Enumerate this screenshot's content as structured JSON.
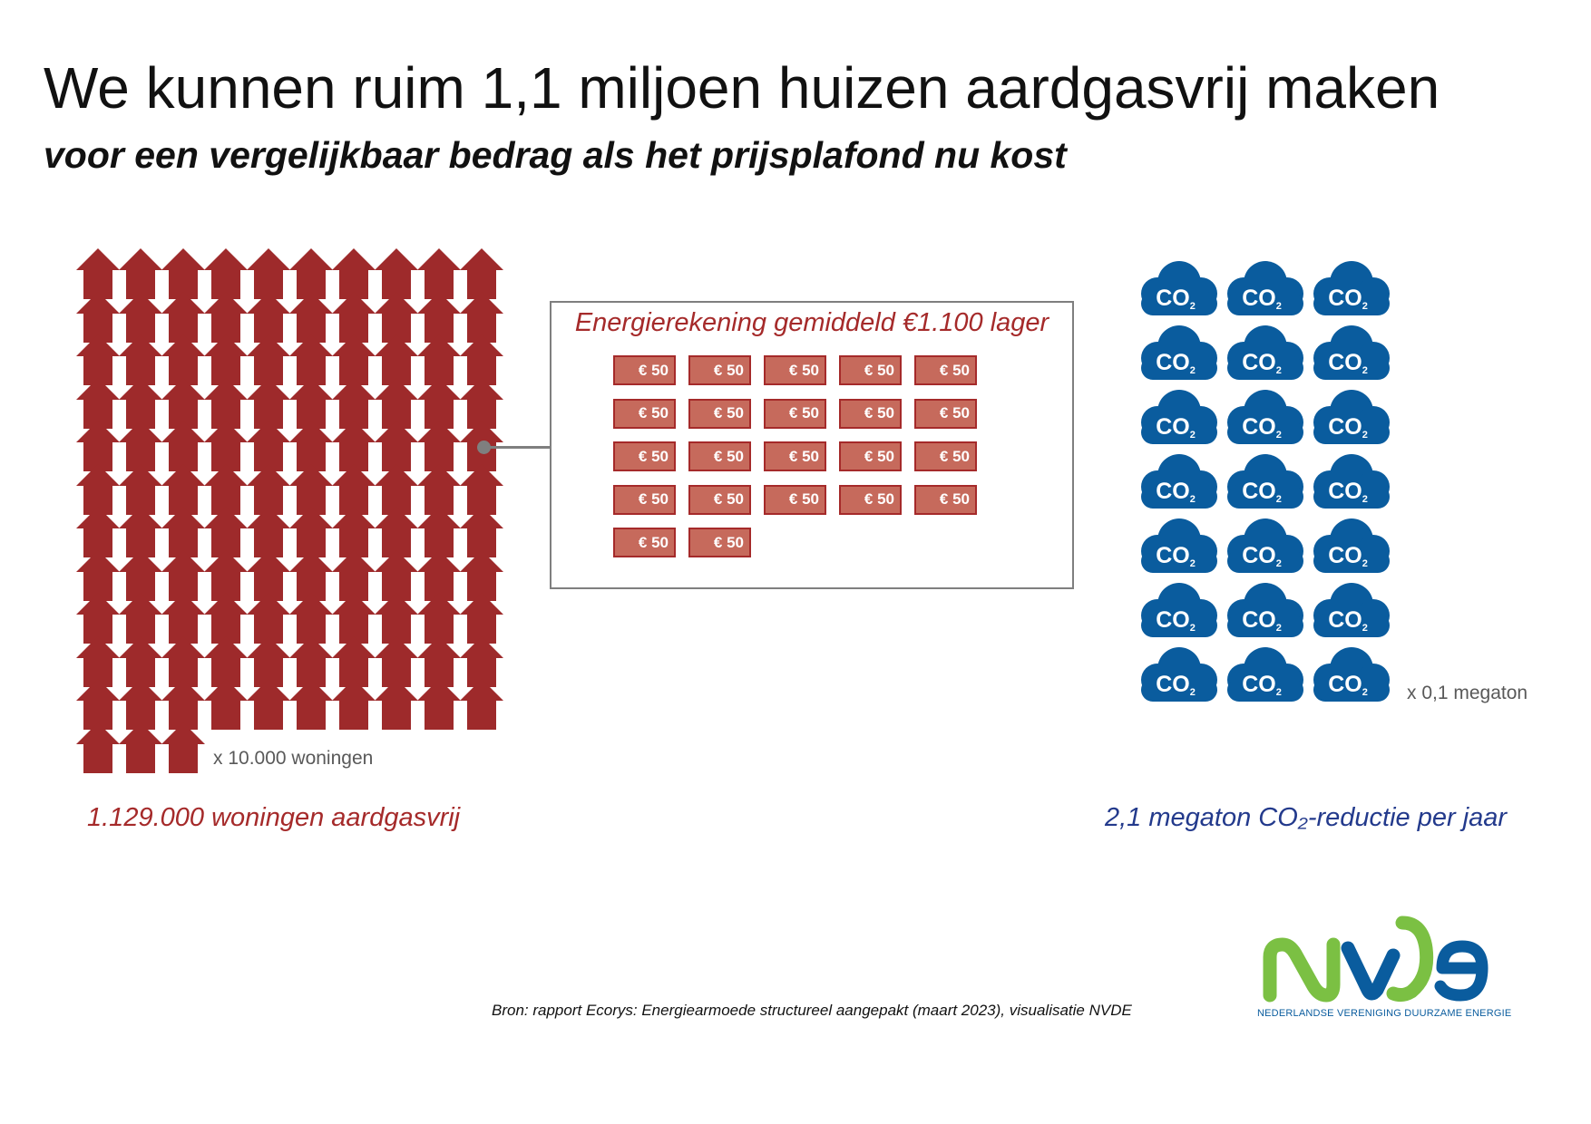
{
  "header": {
    "title": "We kunnen ruim 1,1 miljoen huizen aardgasvrij maken",
    "subtitle": "voor een vergelijkbaar bedrag als het prijsplafond nu kost"
  },
  "houses": {
    "count": 113,
    "unit_label": "x 10.000 woningen",
    "summary": "1.129.000 woningen aardgasvrij",
    "color": "#9e2a2b"
  },
  "energy_bill": {
    "title": "Energierekening gemiddeld €1.100 lager",
    "note_label": "€ 50",
    "note_count": 22,
    "note_fill": "#c66a5c",
    "note_border": "#a52a2a"
  },
  "co2": {
    "count": 21,
    "icon_label": "CO",
    "icon_subscript": "2",
    "unit_label": "x 0,1 megaton",
    "summary": "2,1 megaton CO₂-reductie per jaar",
    "color": "#0a5c9e"
  },
  "source": "Bron: rapport Ecorys: Energiearmoede structureel aangepakt (maart 2023), visualisatie NVDE",
  "logo": {
    "text": "NVDE",
    "tagline": "NEDERLANDSE VERENIGING DUURZAME ENERGIE",
    "green": "#7bc043",
    "blue": "#0a5c9e"
  }
}
